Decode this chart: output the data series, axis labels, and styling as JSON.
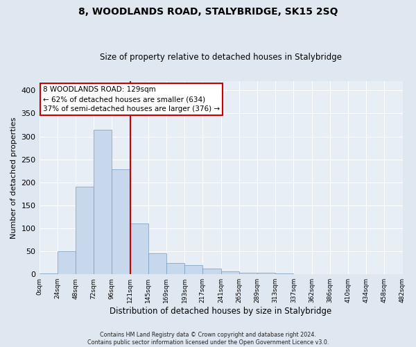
{
  "title": "8, WOODLANDS ROAD, STALYBRIDGE, SK15 2SQ",
  "subtitle": "Size of property relative to detached houses in Stalybridge",
  "xlabel": "Distribution of detached houses by size in Stalybridge",
  "ylabel": "Number of detached properties",
  "bar_color": "#c8d8ec",
  "bar_edge_color": "#7799bb",
  "vline_color": "#cc0000",
  "vline_x_bin": 5,
  "annotation_title": "8 WOODLANDS ROAD: 129sqm",
  "annotation_line1": "← 62% of detached houses are smaller (634)",
  "annotation_line2": "37% of semi-detached houses are larger (376) →",
  "bins": [
    "0sqm",
    "24sqm",
    "48sqm",
    "72sqm",
    "96sqm",
    "121sqm",
    "145sqm",
    "169sqm",
    "193sqm",
    "217sqm",
    "241sqm",
    "265sqm",
    "289sqm",
    "313sqm",
    "337sqm",
    "362sqm",
    "386sqm",
    "410sqm",
    "434sqm",
    "458sqm",
    "482sqm"
  ],
  "values": [
    2,
    50,
    190,
    315,
    228,
    110,
    45,
    25,
    20,
    13,
    7,
    3,
    3,
    2,
    1,
    1,
    0,
    0,
    0,
    1
  ],
  "ylim": [
    0,
    420
  ],
  "yticks": [
    0,
    50,
    100,
    150,
    200,
    250,
    300,
    350,
    400
  ],
  "background_color": "#dfe7f0",
  "plot_bg_color": "#e8eef6",
  "grid_color": "#ffffff",
  "footer1": "Contains HM Land Registry data © Crown copyright and database right 2024.",
  "footer2": "Contains public sector information licensed under the Open Government Licence v3.0."
}
